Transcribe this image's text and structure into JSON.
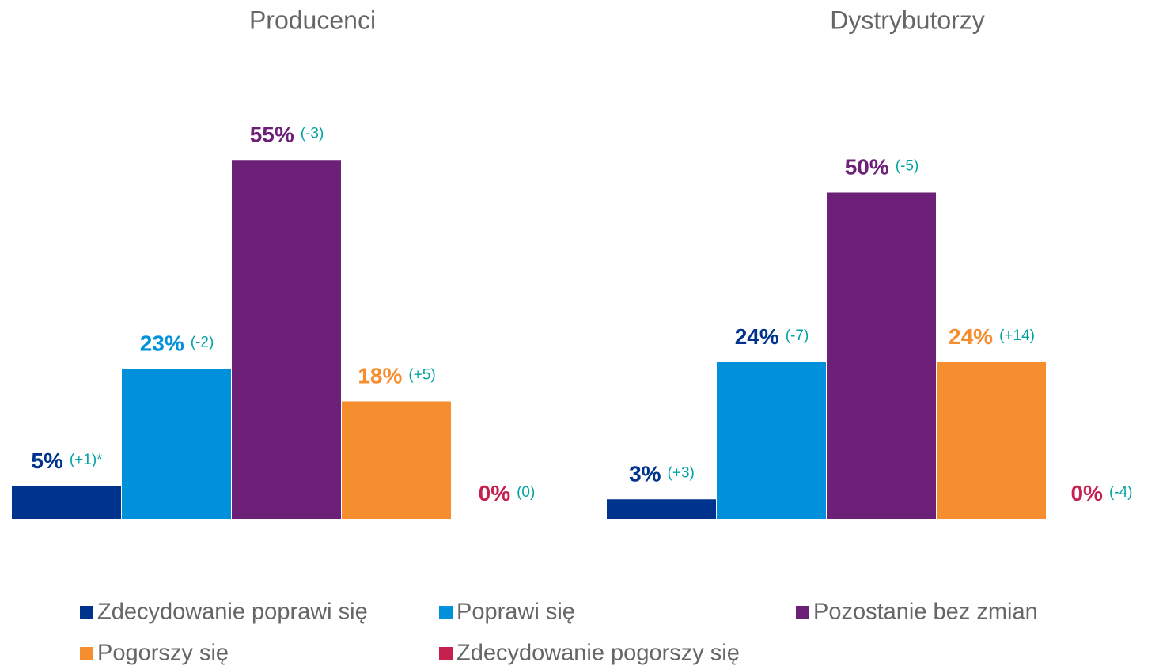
{
  "chart_data": [
    {
      "type": "bar",
      "title": "Producenci",
      "values": [
        5,
        23,
        55,
        18,
        0
      ],
      "value_labels": [
        "5%",
        "23%",
        "55%",
        "18%",
        "0%"
      ],
      "changes": [
        "(+1)*",
        "(-2)",
        "(-3)",
        "(+5)",
        "(0)"
      ],
      "label_colors": [
        "#00338d",
        "#0091da",
        "#6d2077",
        "#f68d2e",
        "#c6204e"
      ],
      "ylim": [
        0,
        60
      ]
    },
    {
      "type": "bar",
      "title": "Dystrybutorzy",
      "values": [
        3,
        24,
        50,
        24,
        0
      ],
      "value_labels": [
        "3%",
        "24%",
        "50%",
        "24%",
        "0%"
      ],
      "changes": [
        "(+3)",
        "(-7)",
        "(-5)",
        "(+14)",
        "(-4)"
      ],
      "label_colors": [
        "#00338d",
        "#00338d",
        "#6d2077",
        "#f68d2e",
        "#c6204e"
      ],
      "ylim": [
        0,
        60
      ]
    }
  ],
  "legend": [
    {
      "name": "Zdecydowanie poprawi się",
      "color": "#00338d"
    },
    {
      "name": "Poprawi się",
      "color": "#0091da"
    },
    {
      "name": "Pozostanie bez zmian",
      "color": "#6d2077"
    },
    {
      "name": "Pogorszy się",
      "color": "#f68d2e"
    },
    {
      "name": "Zdecydowanie pogorszy się",
      "color": "#c6204e"
    }
  ]
}
